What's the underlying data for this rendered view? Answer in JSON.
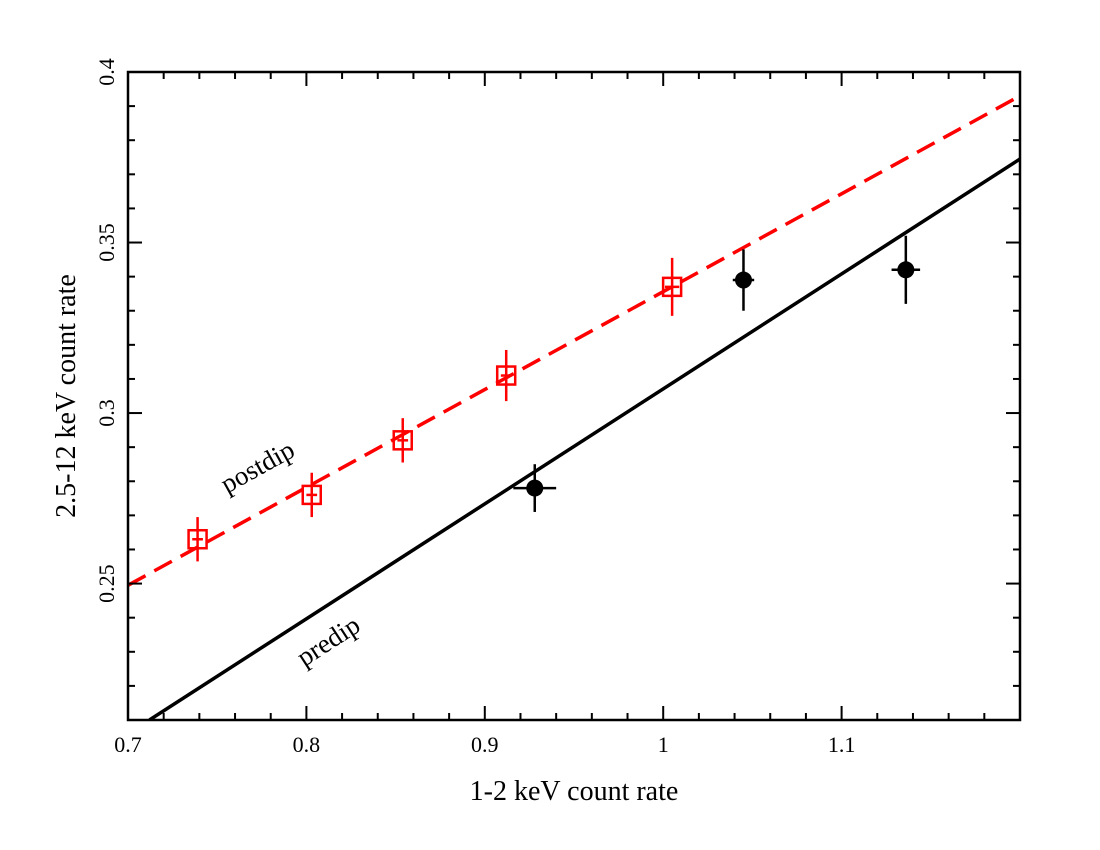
{
  "chart_data": {
    "type": "scatter",
    "xlabel": "1-2 keV  count rate",
    "ylabel": "2.5-12 keV count rate",
    "xlim": [
      0.7,
      1.2
    ],
    "ylim": [
      0.21,
      0.4
    ],
    "x_ticks": [
      0.7,
      0.8,
      0.9,
      1.0,
      1.1
    ],
    "x_tick_labels": [
      "0.7",
      "0.8",
      "0.9",
      "1",
      "1.1"
    ],
    "y_ticks": [
      0.25,
      0.3,
      0.35,
      0.4
    ],
    "y_tick_labels": [
      "0.25",
      "0.3",
      "0.35",
      "0.4"
    ],
    "grid": false,
    "series": [
      {
        "name": "postdip",
        "color": "#ff0000",
        "marker": "open-square",
        "points": [
          {
            "x": 0.739,
            "y": 0.263,
            "xerr": 0.003,
            "yerr": 0.0065
          },
          {
            "x": 0.803,
            "y": 0.276,
            "xerr": 0.003,
            "yerr": 0.0065
          },
          {
            "x": 0.854,
            "y": 0.292,
            "xerr": 0.003,
            "yerr": 0.0065
          },
          {
            "x": 0.912,
            "y": 0.311,
            "xerr": 0.003,
            "yerr": 0.0075
          },
          {
            "x": 1.005,
            "y": 0.337,
            "xerr": 0.004,
            "yerr": 0.0085
          }
        ],
        "fit": {
          "style": "dashed",
          "x": [
            0.7,
            1.2
          ],
          "y": [
            0.2495,
            0.393
          ]
        }
      },
      {
        "name": "predip",
        "color": "#000000",
        "marker": "filled-circle",
        "points": [
          {
            "x": 0.928,
            "y": 0.278,
            "xerr": 0.012,
            "yerr": 0.007
          },
          {
            "x": 1.045,
            "y": 0.339,
            "xerr": 0.006,
            "yerr": 0.009
          },
          {
            "x": 1.136,
            "y": 0.342,
            "xerr": 0.008,
            "yerr": 0.01
          }
        ],
        "fit": {
          "style": "solid",
          "x": [
            0.712,
            1.2
          ],
          "y": [
            0.21,
            0.3745
          ]
        }
      }
    ],
    "annotations": [
      {
        "text": "postdip",
        "x": 0.775,
        "y": 0.282,
        "angle": -29
      },
      {
        "text": "predip",
        "x": 0.815,
        "y": 0.231,
        "angle": -33
      }
    ]
  }
}
